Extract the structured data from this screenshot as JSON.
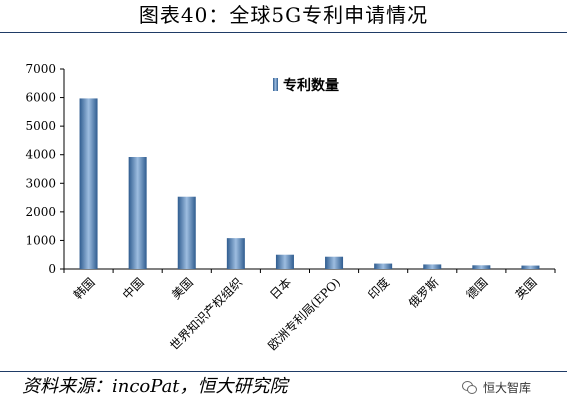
{
  "title": "图表40：全球5G专利申请情况",
  "source": "资料来源：incoPat，恒大研究院",
  "watermark": "恒大智库",
  "colors": {
    "bar_dark": "#2f5c8f",
    "bar_light": "#9dbde0",
    "rule": "#1f3b66"
  },
  "chart_data": {
    "type": "bar",
    "categories": [
      "韩国",
      "中国",
      "美国",
      "世界知识产权组织",
      "日本",
      "欧洲专利局(EPO)",
      "印度",
      "俄罗斯",
      "德国",
      "英国"
    ],
    "series": [
      {
        "name": "专利数量",
        "values": [
          5970,
          3920,
          2530,
          1080,
          500,
          430,
          190,
          160,
          130,
          120
        ]
      }
    ],
    "yticks": [
      0,
      1000,
      2000,
      3000,
      4000,
      5000,
      6000,
      7000
    ],
    "ylim": [
      0,
      7000
    ],
    "legend_position": "top-center",
    "grid": false
  }
}
